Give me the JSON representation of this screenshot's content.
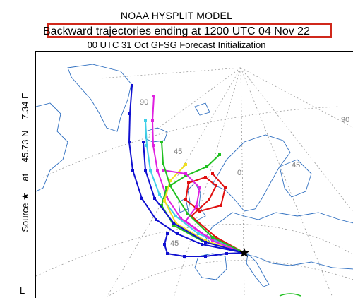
{
  "header": {
    "model": "NOAA HYSPLIT MODEL",
    "main_title": "Backward trajectories ending at 1200 UTC 04 Nov 22",
    "subtitle": "00 UTC 31 Oct    GFSG  Forecast Initialization"
  },
  "source": {
    "label": "Source ★",
    "at": "at",
    "lat": "45.73 N",
    "lon": "7.34 E"
  },
  "corner_label": "L",
  "grid_labels": [
    "90",
    "45",
    "90",
    "45",
    "0",
    "45"
  ],
  "colors": {
    "highlight_box": "#d0281b",
    "land_outline": "#2f6fc0",
    "grid": "#9a9a9a",
    "trajectory_red": "#e01010",
    "trajectory_blue": "#1010d0",
    "trajectory_green": "#20c020",
    "trajectory_cyan": "#40d0e8",
    "trajectory_magenta": "#e020e0",
    "trajectory_yellow": "#f0e020"
  },
  "trajectory_colors": [
    "red",
    "blue",
    "green",
    "cyan",
    "magenta",
    "yellow"
  ]
}
